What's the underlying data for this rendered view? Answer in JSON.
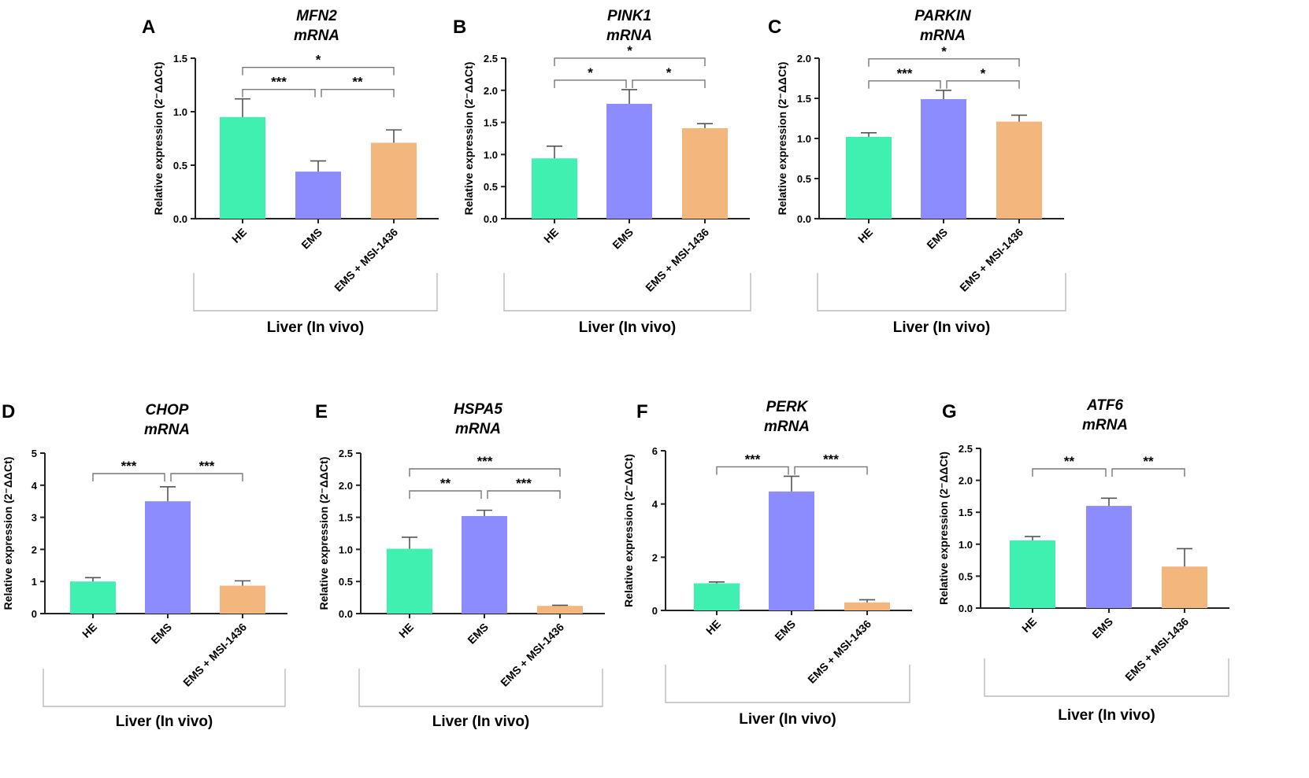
{
  "figure": {
    "group_label": "Liver (In vivo)",
    "categories": [
      "HE",
      "EMS",
      "EMS + MSI-1436"
    ],
    "colors": [
      "#40f0b0",
      "#8c8cff",
      "#f3b77d"
    ]
  },
  "chart_data": [
    {
      "panel": "A",
      "type": "bar",
      "title_line1": "MFN2",
      "title_line2": "mRNA",
      "ylabel": "Relative expression (2⁻ΔΔCt)",
      "categories": [
        "HE",
        "EMS",
        "EMS + MSI-1436"
      ],
      "values": [
        0.95,
        0.44,
        0.71
      ],
      "errors": [
        0.17,
        0.1,
        0.12
      ],
      "ylim": [
        0,
        1.5
      ],
      "yticks": [
        "0.0",
        "0.5",
        "1.0",
        "1.5"
      ],
      "significance": [
        {
          "from": 0,
          "to": 1,
          "label": "***"
        },
        {
          "from": 1,
          "to": 2,
          "label": "**"
        },
        {
          "from": 0,
          "to": 2,
          "label": "*"
        }
      ]
    },
    {
      "panel": "B",
      "type": "bar",
      "title_line1": "PINK1",
      "title_line2": "mRNA",
      "ylabel": "Relative expression (2⁻ΔΔCt)",
      "categories": [
        "HE",
        "EMS",
        "EMS + MSI-1436"
      ],
      "values": [
        0.94,
        1.79,
        1.41
      ],
      "errors": [
        0.19,
        0.22,
        0.07
      ],
      "ylim": [
        0,
        2.5
      ],
      "yticks": [
        "0.0",
        "0.5",
        "1.0",
        "1.5",
        "2.0",
        "2.5"
      ],
      "significance": [
        {
          "from": 0,
          "to": 1,
          "label": "*"
        },
        {
          "from": 1,
          "to": 2,
          "label": "*"
        },
        {
          "from": 0,
          "to": 2,
          "label": "*"
        }
      ]
    },
    {
      "panel": "C",
      "type": "bar",
      "title_line1": "PARKIN",
      "title_line2": "mRNA",
      "ylabel": "Relative expression (2⁻ΔΔCt)",
      "categories": [
        "HE",
        "EMS",
        "EMS + MSI-1436"
      ],
      "values": [
        1.02,
        1.49,
        1.21
      ],
      "errors": [
        0.05,
        0.11,
        0.08
      ],
      "ylim": [
        0,
        2.0
      ],
      "yticks": [
        "0.0",
        "0.5",
        "1.0",
        "1.5",
        "2.0"
      ],
      "significance": [
        {
          "from": 0,
          "to": 1,
          "label": "***"
        },
        {
          "from": 1,
          "to": 2,
          "label": "*"
        },
        {
          "from": 0,
          "to": 2,
          "label": "*"
        }
      ]
    },
    {
      "panel": "D",
      "type": "bar",
      "title_line1": "CHOP",
      "title_line2": "mRNA",
      "ylabel": "Relative expression (2⁻ΔΔCt)",
      "categories": [
        "HE",
        "EMS",
        "EMS + MSI-1436"
      ],
      "values": [
        1.0,
        3.5,
        0.87
      ],
      "errors": [
        0.12,
        0.45,
        0.15
      ],
      "ylim": [
        0,
        5
      ],
      "yticks": [
        "0",
        "1",
        "2",
        "3",
        "4",
        "5"
      ],
      "significance": [
        {
          "from": 0,
          "to": 1,
          "label": "***"
        },
        {
          "from": 1,
          "to": 2,
          "label": "***"
        }
      ]
    },
    {
      "panel": "E",
      "type": "bar",
      "title_line1": "HSPA5",
      "title_line2": "mRNA",
      "ylabel": "Relative expression (2⁻ΔΔCt)",
      "categories": [
        "HE",
        "EMS",
        "EMS + MSI-1436"
      ],
      "values": [
        1.01,
        1.52,
        0.12
      ],
      "errors": [
        0.18,
        0.09,
        0.01
      ],
      "ylim": [
        0,
        2.5
      ],
      "yticks": [
        "0.0",
        "0.5",
        "1.0",
        "1.5",
        "2.0",
        "2.5"
      ],
      "significance": [
        {
          "from": 0,
          "to": 1,
          "label": "**"
        },
        {
          "from": 1,
          "to": 2,
          "label": "***"
        },
        {
          "from": 0,
          "to": 2,
          "label": "***"
        }
      ]
    },
    {
      "panel": "F",
      "type": "bar",
      "title_line1": "PERK",
      "title_line2": "mRNA",
      "ylabel": "Relative expression (2⁻ΔΔCt)",
      "categories": [
        "HE",
        "EMS",
        "EMS + MSI-1436"
      ],
      "values": [
        1.02,
        4.47,
        0.3
      ],
      "errors": [
        0.05,
        0.57,
        0.1
      ],
      "ylim": [
        0,
        6
      ],
      "yticks": [
        "0",
        "2",
        "4",
        "6"
      ],
      "significance": [
        {
          "from": 0,
          "to": 1,
          "label": "***"
        },
        {
          "from": 1,
          "to": 2,
          "label": "***"
        }
      ]
    },
    {
      "panel": "G",
      "type": "bar",
      "title_line1": "ATF6",
      "title_line2": "mRNA",
      "ylabel": "Relative expression (2⁻ΔΔCt)",
      "categories": [
        "HE",
        "EMS",
        "EMS + MSI-1436"
      ],
      "values": [
        1.06,
        1.6,
        0.65
      ],
      "errors": [
        0.06,
        0.12,
        0.28
      ],
      "ylim": [
        0,
        2.5
      ],
      "yticks": [
        "0.0",
        "0.5",
        "1.0",
        "1.5",
        "2.0",
        "2.5"
      ],
      "significance": [
        {
          "from": 0,
          "to": 1,
          "label": "**"
        },
        {
          "from": 1,
          "to": 2,
          "label": "**"
        }
      ]
    }
  ]
}
